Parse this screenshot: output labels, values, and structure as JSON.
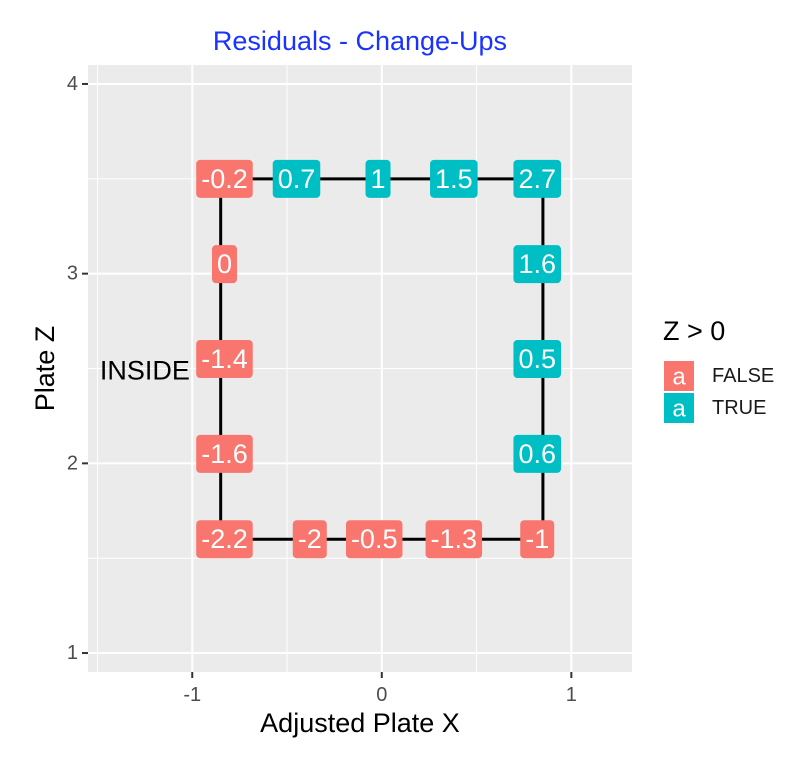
{
  "chart_data": {
    "type": "scatter",
    "title": "Residuals - Change-Ups",
    "xlabel": "Adjusted Plate X",
    "ylabel": "Plate Z",
    "xlim": [
      -1.55,
      1.32
    ],
    "ylim": [
      0.9,
      4.1
    ],
    "x_ticks": [
      -1,
      0,
      1
    ],
    "x_tick_labels": [
      "-1",
      "0",
      "1"
    ],
    "y_ticks": [
      1,
      2,
      3,
      4
    ],
    "y_tick_labels": [
      "1",
      "2",
      "3",
      "4"
    ],
    "grid": true,
    "legend": {
      "title": "Z > 0",
      "placement": "right",
      "entries": [
        {
          "label": "FALSE",
          "key": "a",
          "color": "#F8766D"
        },
        {
          "label": "TRUE",
          "key": "a",
          "color": "#00BFC4"
        }
      ]
    },
    "zone": {
      "x": [
        -0.85,
        0.85
      ],
      "z": [
        1.6,
        3.5
      ],
      "color": "#000000"
    },
    "points": [
      {
        "x": -0.83,
        "z": 3.5,
        "label": "-0.2",
        "positive": false
      },
      {
        "x": -0.45,
        "z": 3.5,
        "label": "0.7",
        "positive": true
      },
      {
        "x": -0.02,
        "z": 3.5,
        "label": "1",
        "positive": true
      },
      {
        "x": 0.38,
        "z": 3.5,
        "label": "1.5",
        "positive": true
      },
      {
        "x": 0.82,
        "z": 3.5,
        "label": "2.7",
        "positive": true
      },
      {
        "x": -0.83,
        "z": 3.05,
        "label": "0",
        "positive": false
      },
      {
        "x": 0.82,
        "z": 3.05,
        "label": "1.6",
        "positive": true
      },
      {
        "x": -0.83,
        "z": 2.55,
        "label": "-1.4",
        "positive": false
      },
      {
        "x": 0.82,
        "z": 2.55,
        "label": "0.5",
        "positive": true
      },
      {
        "x": -0.83,
        "z": 2.05,
        "label": "-1.6",
        "positive": false
      },
      {
        "x": 0.82,
        "z": 2.05,
        "label": "0.6",
        "positive": true
      },
      {
        "x": -0.83,
        "z": 1.6,
        "label": "-2.2",
        "positive": false
      },
      {
        "x": -0.38,
        "z": 1.6,
        "label": "-2",
        "positive": false
      },
      {
        "x": -0.04,
        "z": 1.6,
        "label": "-0.5",
        "positive": false
      },
      {
        "x": 0.38,
        "z": 1.6,
        "label": "-1.3",
        "positive": false
      },
      {
        "x": 0.82,
        "z": 1.6,
        "label": "-1",
        "positive": false
      }
    ],
    "annotations": [
      {
        "text": "INSIDE",
        "x": -1.25,
        "z": 2.49,
        "color": "#FF2A1A"
      }
    ],
    "colors": {
      "false": "#F8766D",
      "true": "#00BFC4",
      "title": "#1A33FF",
      "panel": "#EBEBEB",
      "grid": "#FFFFFF"
    }
  }
}
